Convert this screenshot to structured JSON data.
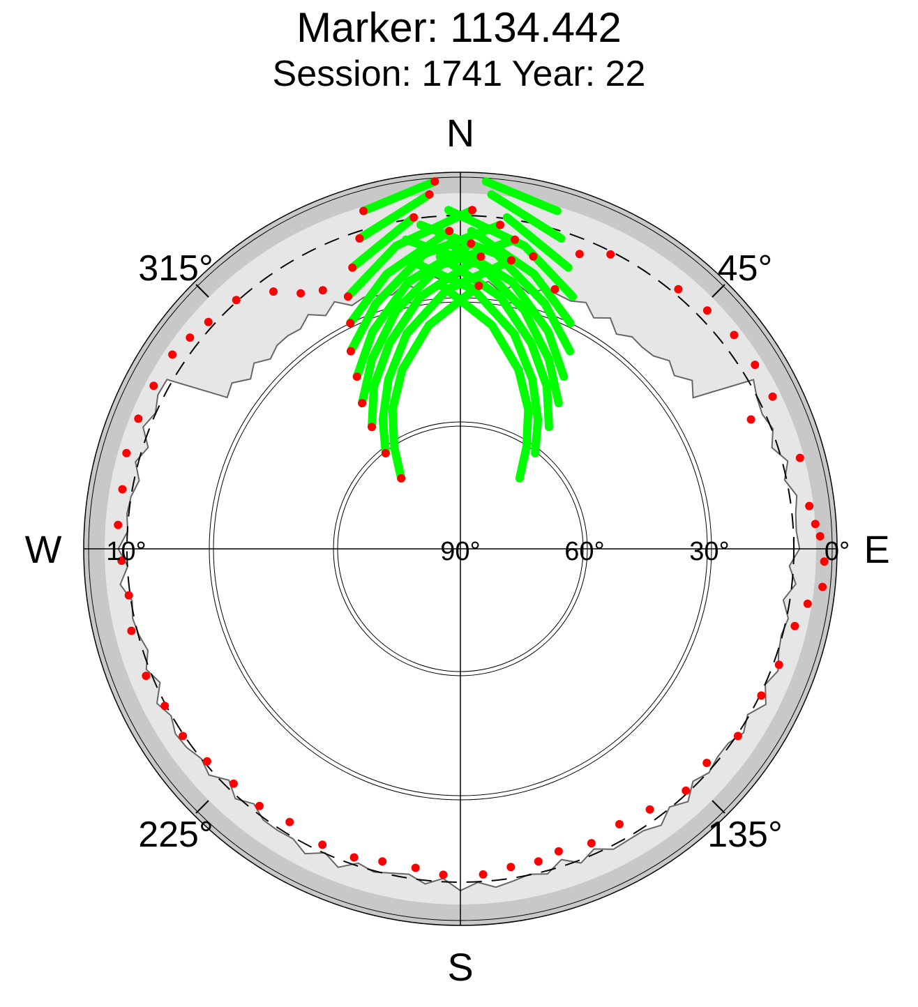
{
  "title": "Marker: 1134.442",
  "subtitle": "Session: 1741 Year: 22",
  "colors": {
    "track": "#00ff00",
    "endpoint": "#ff0000",
    "outer_ring": "#c8c8c8",
    "mask_region": "#e6e6e6",
    "sky_open": "#ffffff"
  },
  "chart_data": {
    "type": "scatter",
    "projection": "polar sky plot (azimuth clockwise from north, elevation 90 deg at centre)",
    "compass": {
      "north": "N",
      "east": "E",
      "south": "S",
      "west": "W"
    },
    "azimuth_labels": [
      "45°",
      "135°",
      "225°",
      "315°"
    ],
    "elevation_labels": [
      "0°",
      "30°",
      "60°",
      "90°",
      "10°"
    ],
    "elevation_mask_deg": 10,
    "series": [
      {
        "tracks": [
          [
            [
              -40,
              68
            ],
            [
              -33,
              61
            ],
            [
              -26,
              53
            ],
            [
              -18,
              45
            ],
            [
              -8,
              36
            ],
            [
              4,
              27
            ]
          ],
          [
            [
              -38,
              61
            ],
            [
              -31,
              54
            ],
            [
              -23,
              46
            ],
            [
              -14,
              37
            ],
            [
              -3,
              28
            ],
            [
              10,
              20
            ]
          ],
          [
            [
              -36,
              54
            ],
            [
              -28,
              46
            ],
            [
              -19,
              38
            ],
            [
              -9,
              29
            ],
            [
              4,
              20
            ]
          ],
          [
            [
              -34,
              48
            ],
            [
              -25,
              40
            ],
            [
              -15,
              31
            ],
            [
              -4,
              22
            ],
            [
              10,
              15
            ]
          ],
          [
            [
              -31,
              42
            ],
            [
              -22,
              34
            ],
            [
              -11,
              25
            ],
            [
              2,
              17
            ]
          ],
          [
            [
              -29,
              36
            ],
            [
              -19,
              28
            ],
            [
              -7,
              19
            ],
            [
              7,
              12
            ]
          ],
          [
            [
              -26,
              30
            ],
            [
              -15,
              22
            ],
            [
              -2,
              14
            ]
          ],
          [
            [
              -24,
              24
            ],
            [
              -12,
              16
            ],
            [
              2,
              9
            ]
          ],
          [
            [
              -21,
              18
            ],
            [
              -8,
              10
            ]
          ],
          [
            [
              -18,
              12
            ],
            [
              -5,
              5
            ]
          ],
          [
            [
              -16,
              6
            ],
            [
              -4,
              2
            ]
          ]
        ],
        "name": ""
      }
    ],
    "track_ends": [
      [
        -40,
        68
      ],
      [
        -38,
        61
      ],
      [
        -36,
        54
      ],
      [
        -34,
        48
      ],
      [
        -31,
        42
      ],
      [
        -29,
        36
      ],
      [
        -26,
        30
      ],
      [
        -24,
        24
      ],
      [
        -21,
        18
      ],
      [
        -18,
        12
      ],
      [
        -16,
        6
      ],
      [
        4,
        27
      ],
      [
        10,
        20
      ],
      [
        4,
        20
      ],
      [
        10,
        15
      ],
      [
        2,
        17
      ],
      [
        7,
        12
      ],
      [
        -2,
        14
      ],
      [
        2,
        9
      ],
      [
        -8,
        10
      ],
      [
        -5,
        5
      ],
      [
        -4,
        2
      ],
      [
        20,
        24
      ],
      [
        14,
        18
      ],
      [
        22,
        14
      ],
      [
        27,
        11
      ],
      [
        40,
        9
      ],
      [
        46,
        8
      ],
      [
        52,
        7
      ],
      [
        58,
        7
      ],
      [
        64,
        7
      ],
      [
        66,
        14
      ],
      [
        75,
        6
      ],
      [
        83,
        6
      ],
      [
        86,
        5
      ],
      [
        88,
        4
      ],
      [
        92,
        3
      ],
      [
        96,
        3
      ],
      [
        99,
        6
      ],
      [
        103,
        8
      ],
      [
        110,
        9
      ],
      [
        116,
        10
      ],
      [
        124,
        10
      ],
      [
        131,
        12
      ],
      [
        137,
        11
      ],
      [
        144,
        13
      ],
      [
        150,
        14
      ],
      [
        156,
        13
      ],
      [
        162,
        14
      ],
      [
        166,
        13
      ],
      [
        171,
        13
      ],
      [
        176,
        12
      ],
      [
        183,
        12
      ],
      [
        188,
        13
      ],
      [
        194,
        13
      ],
      [
        199,
        12
      ],
      [
        205,
        12
      ],
      [
        212,
        13
      ],
      [
        218,
        12
      ],
      [
        224,
        12
      ],
      [
        230,
        11
      ],
      [
        236,
        10
      ],
      [
        242,
        10
      ],
      [
        248,
        9
      ],
      [
        256,
        9
      ],
      [
        262,
        10
      ],
      [
        268,
        9
      ],
      [
        274,
        8
      ],
      [
        280,
        8
      ],
      [
        286,
        7
      ],
      [
        292,
        7
      ],
      [
        298,
        7
      ],
      [
        304,
        7
      ],
      [
        308,
        8
      ],
      [
        312,
        9
      ],
      [
        318,
        10
      ],
      [
        324,
        14
      ],
      [
        328,
        18
      ],
      [
        332,
        20
      ]
    ]
  }
}
